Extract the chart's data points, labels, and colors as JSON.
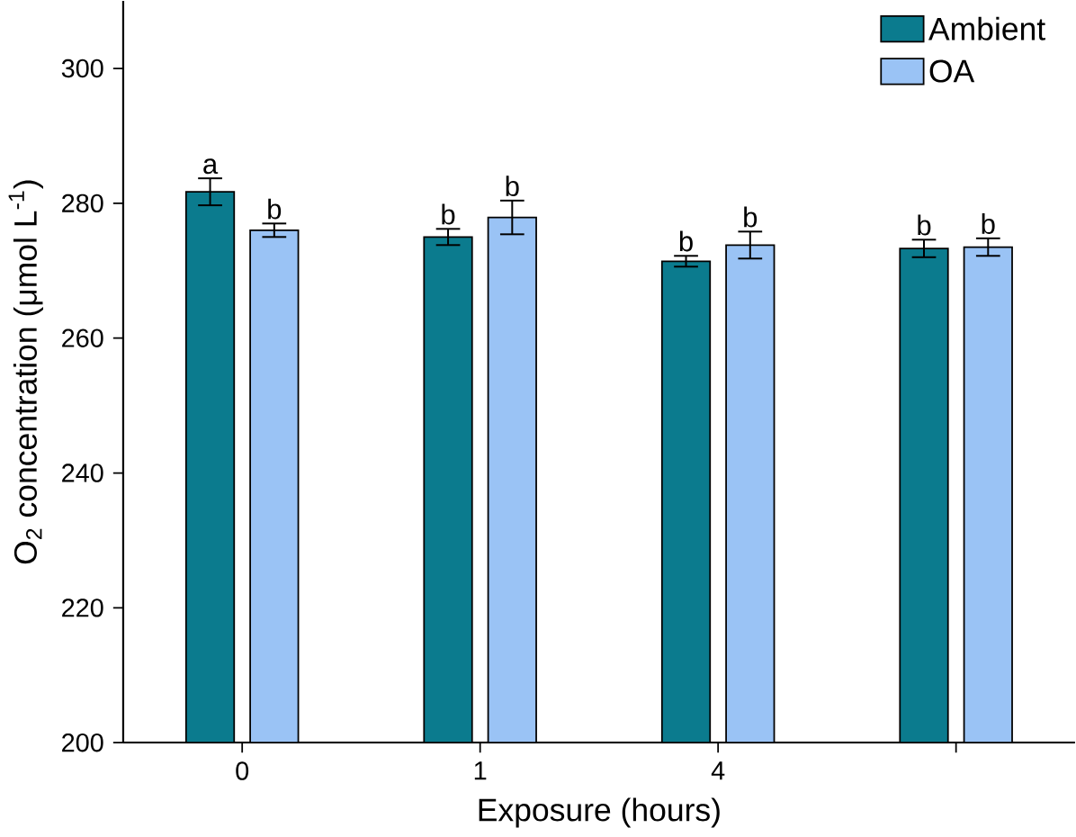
{
  "chart_data": {
    "type": "bar",
    "xlabel": "Exposure (hours)",
    "ylabel": "O$_{2}$ concentration (μmol L$^{-1}$)",
    "categories": [
      "0",
      "1",
      "4",
      null
    ],
    "series": [
      {
        "name": "Ambient",
        "color": "#0b7b8e",
        "values": [
          281.7,
          275,
          271.4,
          273.3
        ],
        "errors": [
          2,
          1.2,
          0.8,
          1.3
        ],
        "value_labels": [
          "a",
          "b",
          "b",
          "b"
        ]
      },
      {
        "name": "OA",
        "color": "#9ac3f5",
        "values": [
          276,
          277.9,
          273.8,
          273.5
        ],
        "errors": [
          1,
          2.5,
          2,
          1.3
        ],
        "value_labels": [
          "b",
          "b",
          "b",
          "b"
        ]
      }
    ],
    "ylim": [
      200,
      310
    ],
    "yticks": [
      200,
      220,
      240,
      260,
      280,
      300
    ],
    "legend": "top right",
    "grid": false
  }
}
